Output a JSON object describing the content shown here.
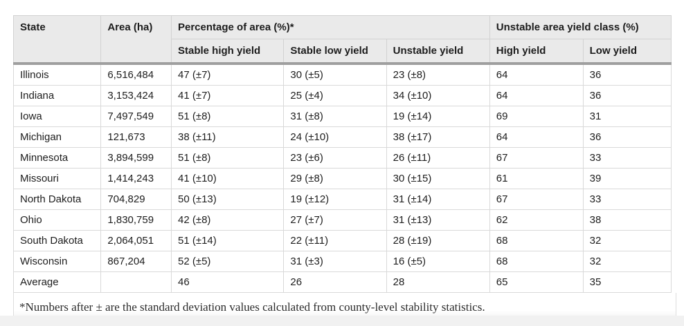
{
  "table": {
    "header": {
      "state": "State",
      "area": "Area (ha)",
      "percentage_group": "Percentage of area (%)*",
      "unstable_group": "Unstable area yield class (%)",
      "stable_high": "Stable high yield",
      "stable_low": "Stable low yield",
      "unstable": "Unstable yield",
      "high": "High yield",
      "low": "Low yield"
    },
    "rows": [
      {
        "state": "Illinois",
        "area": "6,516,484",
        "stable_high": "47 (±7)",
        "stable_low": "30 (±5)",
        "unstable": "23 (±8)",
        "high": "64",
        "low": "36"
      },
      {
        "state": "Indiana",
        "area": "3,153,424",
        "stable_high": "41 (±7)",
        "stable_low": "25 (±4)",
        "unstable": "34 (±10)",
        "high": "64",
        "low": "36"
      },
      {
        "state": "Iowa",
        "area": "7,497,549",
        "stable_high": "51 (±8)",
        "stable_low": "31 (±8)",
        "unstable": "19 (±14)",
        "high": "69",
        "low": "31"
      },
      {
        "state": "Michigan",
        "area": "121,673",
        "stable_high": "38 (±11)",
        "stable_low": "24 (±10)",
        "unstable": "38 (±17)",
        "high": "64",
        "low": "36"
      },
      {
        "state": "Minnesota",
        "area": "3,894,599",
        "stable_high": "51 (±8)",
        "stable_low": "23 (±6)",
        "unstable": "26 (±11)",
        "high": "67",
        "low": "33"
      },
      {
        "state": "Missouri",
        "area": "1,414,243",
        "stable_high": "41 (±10)",
        "stable_low": "29 (±8)",
        "unstable": "30 (±15)",
        "high": "61",
        "low": "39"
      },
      {
        "state": "North Dakota",
        "area": "704,829",
        "stable_high": "50 (±13)",
        "stable_low": "19 (±12)",
        "unstable": "31 (±14)",
        "high": "67",
        "low": "33"
      },
      {
        "state": "Ohio",
        "area": "1,830,759",
        "stable_high": "42 (±8)",
        "stable_low": "27 (±7)",
        "unstable": "31 (±13)",
        "high": "62",
        "low": "38"
      },
      {
        "state": "South Dakota",
        "area": "2,064,051",
        "stable_high": "51 (±14)",
        "stable_low": "22 (±11)",
        "unstable": "28 (±19)",
        "high": "68",
        "low": "32"
      },
      {
        "state": "Wisconsin",
        "area": "867,204",
        "stable_high": "52 (±5)",
        "stable_low": "31 (±3)",
        "unstable": "16 (±5)",
        "high": "68",
        "low": "32"
      },
      {
        "state": "Average",
        "area": "",
        "stable_high": "46",
        "stable_low": "26",
        "unstable": "28",
        "high": "65",
        "low": "35"
      }
    ],
    "footnote": "*Numbers after ± are the standard deviation values calculated from county-level stability statistics."
  },
  "colors": {
    "header_bg": "#eaeaea",
    "thick_rule": "#9f9f9f",
    "cell_border": "#d9d9d9",
    "text": "#1d1d1d",
    "page_strip": "#f1f1f1"
  }
}
